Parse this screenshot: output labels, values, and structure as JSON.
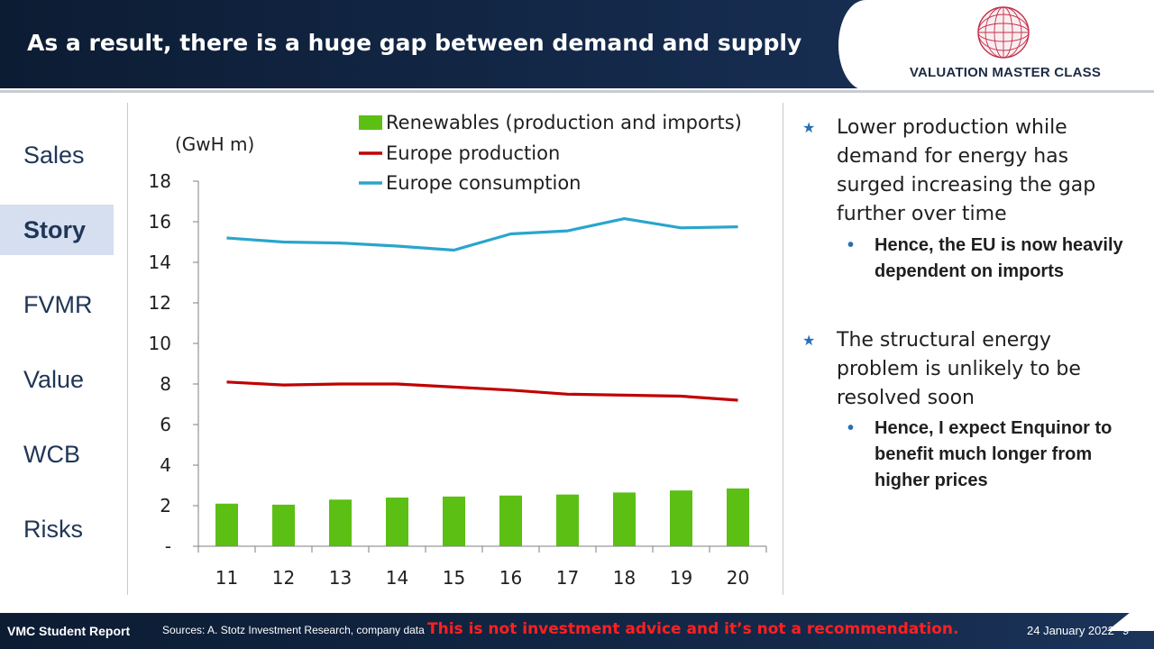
{
  "header": {
    "title": "As a result, there is a huge gap between demand and supply"
  },
  "brand": {
    "logo_text": "VALUATION MASTER CLASS"
  },
  "nav": {
    "items": [
      {
        "label": "Sales",
        "active": false
      },
      {
        "label": "Story",
        "active": true
      },
      {
        "label": "FVMR",
        "active": false
      },
      {
        "label": "Value",
        "active": false
      },
      {
        "label": "WCB",
        "active": false
      },
      {
        "label": "Risks",
        "active": false
      }
    ]
  },
  "chart_data": {
    "type": "bar",
    "unit_label": "(GwH m)",
    "categories": [
      "11",
      "12",
      "13",
      "14",
      "15",
      "16",
      "17",
      "18",
      "19",
      "20"
    ],
    "ylim": [
      0,
      18
    ],
    "yticks": [
      {
        "value": 0,
        "label": "-"
      },
      {
        "value": 2,
        "label": "2"
      },
      {
        "value": 4,
        "label": "4"
      },
      {
        "value": 6,
        "label": "6"
      },
      {
        "value": 8,
        "label": "8"
      },
      {
        "value": 10,
        "label": "10"
      },
      {
        "value": 12,
        "label": "12"
      },
      {
        "value": 14,
        "label": "14"
      },
      {
        "value": 16,
        "label": "16"
      },
      {
        "value": 18,
        "label": "18"
      }
    ],
    "grid": false,
    "legend_position": "top",
    "series": [
      {
        "name": "Renewables (production and imports)",
        "kind": "bar",
        "color": "#5cbf14",
        "values": [
          2.1,
          2.05,
          2.3,
          2.4,
          2.45,
          2.5,
          2.55,
          2.65,
          2.75,
          2.85
        ]
      },
      {
        "name": "Europe production",
        "kind": "line",
        "color": "#c00000",
        "values": [
          8.1,
          7.95,
          8.0,
          8.0,
          7.85,
          7.7,
          7.5,
          7.45,
          7.4,
          7.2
        ]
      },
      {
        "name": "Europe consumption",
        "kind": "line",
        "color": "#2aa5cc",
        "values": [
          15.2,
          15.0,
          14.95,
          14.8,
          14.6,
          15.4,
          15.55,
          16.15,
          15.7,
          15.75
        ]
      }
    ]
  },
  "bullets": [
    {
      "text": "Lower production while demand for energy has surged increasing the gap further over time",
      "sub": "Hence, the EU is now heavily dependent on imports"
    },
    {
      "text": "The structural energy problem is unlikely to be resolved soon",
      "sub": "Hence, I expect Enquinor to benefit much longer from higher prices"
    }
  ],
  "icons": {
    "bullet_main": "star-bullet-icon",
    "bullet_sub": "dot-bullet-icon",
    "logo": "globe-logo-icon"
  },
  "footer": {
    "report": "VMC Student Report",
    "sources": "Sources: A. Stotz Investment Research, company data",
    "disclaimer": "This is not investment advice and it’s not a recommendation.",
    "date": "24 January 2022",
    "page": "9"
  }
}
